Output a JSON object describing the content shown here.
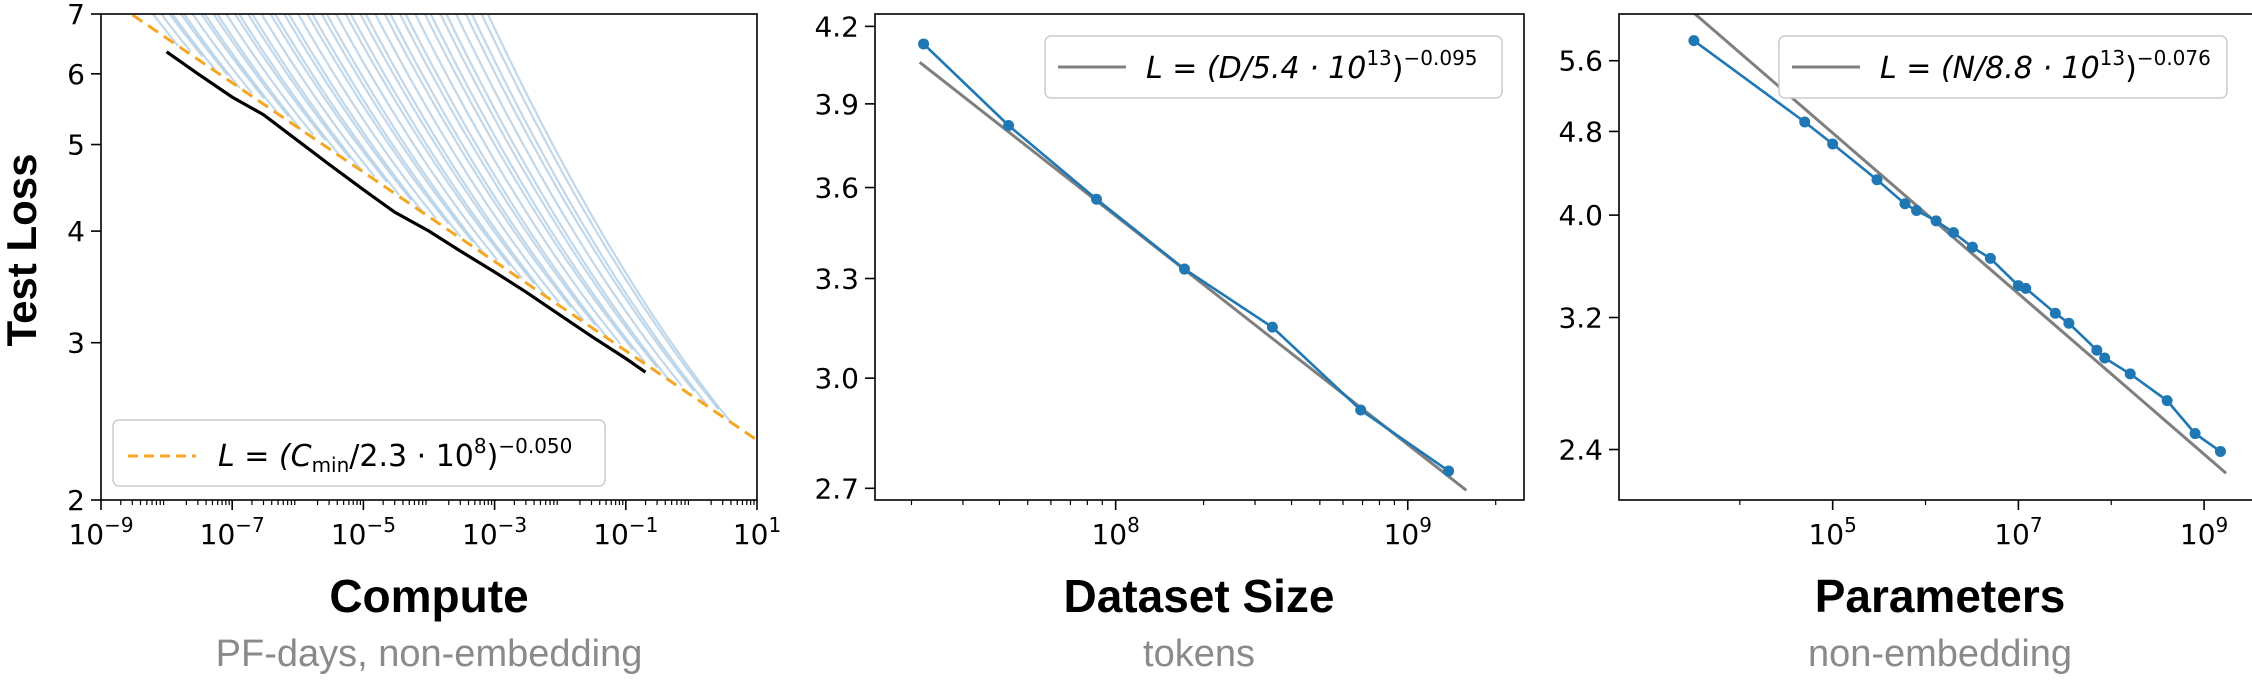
{
  "y_axis_label": "Test Loss",
  "chart_data": [
    {
      "type": "line",
      "xscale": "log",
      "yscale": "log",
      "xlim": [
        1e-09,
        10
      ],
      "ylim": [
        2,
        7
      ],
      "x_ticks": [
        "10−9",
        "10−7",
        "10−5",
        "10−3",
        "10−1",
        "101"
      ],
      "y_ticks": [
        "2",
        "3",
        "4",
        "5",
        "6",
        "7"
      ],
      "xlabel": "Compute",
      "xlabel_sub": "PF-days, non-embedding",
      "ylabel": "Test Loss",
      "legend": {
        "placement": "lower-left",
        "text_prefix": "L = (C",
        "text_sub": "min",
        "text_mid": "/2.3 · 10",
        "text_exp1": "8",
        "text_close": ")",
        "text_exp2": "−0.050"
      },
      "fit": {
        "coefficient": 230000000.0,
        "exponent": -0.05,
        "color": "#f5a623",
        "style": "dashed"
      },
      "frontier": {
        "color": "#000000",
        "x": [
          1e-08,
          3e-08,
          1e-07,
          3e-07,
          1e-06,
          3e-06,
          1e-05,
          3e-05,
          0.0001,
          0.0003,
          0.001,
          0.003,
          0.01,
          0.03,
          0.1,
          0.2
        ],
        "y": [
          6.35,
          6.0,
          5.65,
          5.4,
          5.05,
          4.75,
          4.45,
          4.2,
          4.0,
          3.8,
          3.6,
          3.42,
          3.22,
          3.05,
          2.88,
          2.78
        ]
      },
      "learning_curves_color": "#9fc3e0"
    },
    {
      "type": "line",
      "xscale": "log",
      "yscale": "log",
      "xlim": [
        15000000.0,
        2500000000.0
      ],
      "ylim": [
        2.67,
        4.25
      ],
      "x_ticks": [
        "108",
        "109"
      ],
      "y_ticks": [
        "2.7",
        "3.0",
        "3.3",
        "3.6",
        "3.9",
        "4.2"
      ],
      "xlabel": "Dataset Size",
      "xlabel_sub": "tokens",
      "legend": {
        "placement": "top-right",
        "text_prefix": "L = (D/5.4 · 10",
        "text_exp1": "13",
        "text_close": ")",
        "text_exp2": "−0.095"
      },
      "fit": {
        "coefficient": 54000000000000.0,
        "exponent": -0.095,
        "color": "#7f7f7f"
      },
      "series": [
        {
          "color": "#1f77b4",
          "x": [
            22000000.0,
            43000000.0,
            86000000.0,
            172000000.0,
            344000000.0,
            690000000.0,
            1380000000.0
          ],
          "y": [
            4.13,
            3.82,
            3.56,
            3.33,
            3.15,
            2.91,
            2.745
          ]
        }
      ]
    },
    {
      "type": "line",
      "xscale": "log",
      "yscale": "log",
      "xlim": [
        500.0,
        4000000000.0
      ],
      "ylim": [
        2.15,
        6.2
      ],
      "x_ticks": [
        "105",
        "107",
        "109"
      ],
      "y_ticks": [
        "2.4",
        "3.2",
        "4.0",
        "4.8",
        "5.6"
      ],
      "xlabel": "Parameters",
      "xlabel_sub": "non-embedding",
      "legend": {
        "placement": "top-right",
        "text_prefix": "L = (N/8.8 · 10",
        "text_exp1": "13",
        "text_close": ")",
        "text_exp2": "−0.076"
      },
      "fit": {
        "coefficient": 88000000000000.0,
        "exponent": -0.076,
        "color": "#7f7f7f"
      },
      "series": [
        {
          "color": "#1f77b4",
          "x": [
            3200,
            50000,
            100000,
            300000,
            600000,
            800000,
            1300000,
            2000000,
            3200000,
            5000000,
            10000000,
            12000000,
            25000000,
            35000000,
            70000000,
            85000000,
            160000000,
            400000000,
            800000000,
            1500000000
          ],
          "y": [
            5.85,
            4.9,
            4.67,
            4.32,
            4.1,
            4.04,
            3.95,
            3.85,
            3.73,
            3.64,
            3.43,
            3.41,
            3.23,
            3.16,
            2.98,
            2.93,
            2.83,
            2.67,
            2.485,
            2.39
          ]
        }
      ]
    }
  ]
}
